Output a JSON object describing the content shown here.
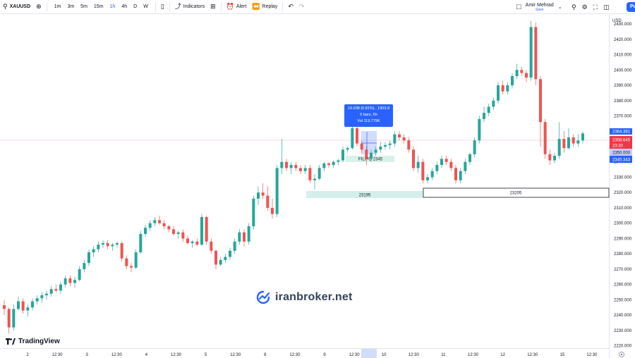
{
  "toolbar": {
    "symbol": "XAUUSD",
    "timeframes": [
      "1m",
      "3m",
      "5m",
      "15m",
      "1h",
      "4h",
      "D",
      "W"
    ],
    "active_timeframe": "1h",
    "indicators_label": "Indicators",
    "alert_label": "Alert",
    "replay_label": "Replay"
  },
  "user": {
    "name": "Amir Mehrad",
    "status": "Save"
  },
  "publish_label": "Pu",
  "price_axis": {
    "currency": "USD",
    "ticks": [
      "2430.000",
      "2420.000",
      "2410.000",
      "2400.000",
      "2390.000",
      "2380.000",
      "2370.000",
      "2360.000",
      "2350.000",
      "2340.000",
      "2330.000",
      "2320.000",
      "2310.000",
      "2300.000",
      "2290.000",
      "2280.000",
      "2270.000",
      "2260.000",
      "2250.000",
      "2240.000",
      "2230.000",
      "2220.000"
    ],
    "tag_high": "2364.381",
    "tag_price": "2358.645",
    "tag_countdown": "23:30",
    "tag_mid": "2350.000",
    "tag_low": "2345.343"
  },
  "time_axis": {
    "labels": [
      "2",
      "12:30",
      "3",
      "12:30",
      "4",
      "12:30",
      "5",
      "12:30",
      "8",
      "12:30",
      "9",
      "12:30",
      "10",
      "12:30",
      "11",
      "12:30",
      "12",
      "12:30",
      "15",
      "12:30"
    ]
  },
  "tooltip": {
    "line1": "19.038 (0.81%) , 1903.8",
    "line2": "6 bars, 6h",
    "line3": "Vol 119.779K"
  },
  "zones": {
    "small_label": "FILIPO 2345",
    "zone_left_label": "23195",
    "zone_right_label": "23205"
  },
  "watermark": "iranbroker.net",
  "logo": "TradingView",
  "colors": {
    "up": "#26a69a",
    "down": "#ef5350",
    "accent": "#2962ff",
    "zone": "#d4efe9"
  },
  "chart_data": {
    "type": "candlestick",
    "symbol": "XAUUSD",
    "timeframe": "1h",
    "ylim": [
      2218,
      2436
    ],
    "candles": [
      [
        2246.5,
        2250,
        2240,
        2244
      ],
      [
        2244,
        2245,
        2228,
        2232
      ],
      [
        2232,
        2247,
        2230,
        2244
      ],
      [
        2244,
        2252,
        2243,
        2249
      ],
      [
        2249,
        2251,
        2241,
        2243
      ],
      [
        2243,
        2247,
        2239,
        2245
      ],
      [
        2245,
        2251,
        2243,
        2249
      ],
      [
        2249,
        2253,
        2247,
        2251
      ],
      [
        2251,
        2255,
        2248,
        2253
      ],
      [
        2253,
        2256,
        2250,
        2254
      ],
      [
        2254,
        2259,
        2252,
        2257
      ],
      [
        2257,
        2260,
        2255,
        2256
      ],
      [
        2256,
        2262,
        2254,
        2260
      ],
      [
        2260,
        2266,
        2258,
        2264
      ],
      [
        2264,
        2266,
        2259,
        2261
      ],
      [
        2261,
        2265,
        2258,
        2263
      ],
      [
        2263,
        2272,
        2262,
        2270
      ],
      [
        2270,
        2276,
        2268,
        2274
      ],
      [
        2274,
        2283,
        2272,
        2281
      ],
      [
        2281,
        2285,
        2278,
        2283
      ],
      [
        2283,
        2288,
        2281,
        2286
      ],
      [
        2286,
        2289,
        2284,
        2287
      ],
      [
        2287,
        2289,
        2283,
        2285
      ],
      [
        2285,
        2287,
        2282,
        2286
      ],
      [
        2286,
        2288,
        2284,
        2287
      ],
      [
        2287,
        2288,
        2275,
        2277
      ],
      [
        2277,
        2279,
        2270,
        2272
      ],
      [
        2272,
        2274,
        2268,
        2271
      ],
      [
        2271,
        2283,
        2270,
        2281
      ],
      [
        2281,
        2295,
        2280,
        2293
      ],
      [
        2293,
        2299,
        2291,
        2297
      ],
      [
        2297,
        2302,
        2295,
        2300
      ],
      [
        2300,
        2304,
        2298,
        2302
      ],
      [
        2302,
        2305,
        2299,
        2300
      ],
      [
        2300,
        2302,
        2296,
        2298
      ],
      [
        2298,
        2299,
        2294,
        2296
      ],
      [
        2296,
        2298,
        2292,
        2293
      ],
      [
        2293,
        2295,
        2290,
        2294
      ],
      [
        2294,
        2296,
        2288,
        2290
      ],
      [
        2290,
        2292,
        2286,
        2287
      ],
      [
        2287,
        2289,
        2284,
        2288
      ],
      [
        2288,
        2290,
        2285,
        2286
      ],
      [
        2286,
        2306,
        2285,
        2304
      ],
      [
        2304,
        2305,
        2286,
        2288
      ],
      [
        2288,
        2290,
        2280,
        2282
      ],
      [
        2282,
        2283,
        2270,
        2273
      ],
      [
        2273,
        2278,
        2272,
        2276
      ],
      [
        2276,
        2280,
        2274,
        2278
      ],
      [
        2278,
        2284,
        2276,
        2282
      ],
      [
        2282,
        2290,
        2280,
        2288
      ],
      [
        2288,
        2296,
        2286,
        2294
      ],
      [
        2294,
        2296,
        2285,
        2288
      ],
      [
        2288,
        2300,
        2286,
        2298
      ],
      [
        2298,
        2318,
        2296,
        2316
      ],
      [
        2316,
        2324,
        2312,
        2320
      ],
      [
        2320,
        2326,
        2316,
        2318
      ],
      [
        2318,
        2324,
        2308,
        2310
      ],
      [
        2310,
        2316,
        2303,
        2306
      ],
      [
        2306,
        2338,
        2304,
        2336
      ],
      [
        2336,
        2355,
        2332,
        2340
      ],
      [
        2340,
        2342,
        2334,
        2336
      ],
      [
        2336,
        2340,
        2332,
        2338
      ],
      [
        2338,
        2340,
        2334,
        2336
      ],
      [
        2336,
        2338,
        2332,
        2334
      ],
      [
        2334,
        2338,
        2332,
        2336
      ],
      [
        2336,
        2338,
        2326,
        2328
      ],
      [
        2328,
        2332,
        2322,
        2329
      ],
      [
        2329,
        2338,
        2328,
        2336
      ],
      [
        2336,
        2340,
        2334,
        2339
      ],
      [
        2339,
        2340,
        2336,
        2338
      ],
      [
        2338,
        2341,
        2336,
        2340
      ],
      [
        2340,
        2342,
        2338,
        2341
      ],
      [
        2341,
        2350,
        2340,
        2348
      ],
      [
        2348,
        2350,
        2346,
        2349
      ],
      [
        2349,
        2364,
        2348,
        2362
      ],
      [
        2362,
        2363,
        2350,
        2352
      ],
      [
        2352,
        2354,
        2346,
        2348
      ],
      [
        2348,
        2350,
        2338,
        2342
      ],
      [
        2342,
        2348,
        2340,
        2346
      ],
      [
        2346,
        2350,
        2344,
        2348
      ],
      [
        2348,
        2353,
        2346,
        2350
      ],
      [
        2350,
        2353,
        2348,
        2351
      ],
      [
        2351,
        2354,
        2348,
        2352
      ],
      [
        2352,
        2360,
        2350,
        2358
      ],
      [
        2358,
        2360,
        2354,
        2356
      ],
      [
        2356,
        2358,
        2352,
        2354
      ],
      [
        2354,
        2356,
        2346,
        2348
      ],
      [
        2348,
        2350,
        2334,
        2336
      ],
      [
        2336,
        2344,
        2333,
        2340
      ],
      [
        2340,
        2342,
        2326,
        2328
      ],
      [
        2328,
        2332,
        2326,
        2330
      ],
      [
        2330,
        2336,
        2328,
        2334
      ],
      [
        2334,
        2340,
        2332,
        2338
      ],
      [
        2338,
        2344,
        2336,
        2342
      ],
      [
        2342,
        2344,
        2338,
        2340
      ],
      [
        2340,
        2342,
        2334,
        2336
      ],
      [
        2336,
        2338,
        2326,
        2328
      ],
      [
        2328,
        2336,
        2326,
        2334
      ],
      [
        2334,
        2342,
        2332,
        2340
      ],
      [
        2340,
        2346,
        2338,
        2345
      ],
      [
        2345,
        2356,
        2343,
        2354
      ],
      [
        2354,
        2370,
        2352,
        2368
      ],
      [
        2368,
        2376,
        2366,
        2372
      ],
      [
        2372,
        2378,
        2370,
        2376
      ],
      [
        2376,
        2382,
        2374,
        2380
      ],
      [
        2380,
        2392,
        2378,
        2390
      ],
      [
        2390,
        2393,
        2384,
        2386
      ],
      [
        2386,
        2392,
        2384,
        2390
      ],
      [
        2390,
        2398,
        2388,
        2396
      ],
      [
        2396,
        2404,
        2394,
        2400
      ],
      [
        2400,
        2402,
        2396,
        2398
      ],
      [
        2398,
        2400,
        2392,
        2395
      ],
      [
        2395,
        2432,
        2393,
        2428
      ],
      [
        2428,
        2431,
        2390,
        2394
      ],
      [
        2394,
        2396,
        2350,
        2366
      ],
      [
        2366,
        2368,
        2342,
        2345
      ],
      [
        2345,
        2348,
        2338,
        2341
      ],
      [
        2341,
        2346,
        2339,
        2344
      ],
      [
        2344,
        2366,
        2342,
        2355
      ],
      [
        2355,
        2360,
        2346,
        2349
      ],
      [
        2349,
        2362,
        2348,
        2356
      ],
      [
        2356,
        2358,
        2350,
        2352
      ],
      [
        2352,
        2358,
        2350,
        2354
      ],
      [
        2354,
        2360,
        2352,
        2358.6
      ]
    ],
    "levels": [
      {
        "label": "23195",
        "price": 2320
      },
      {
        "label": "23205",
        "price": 2321
      }
    ]
  }
}
